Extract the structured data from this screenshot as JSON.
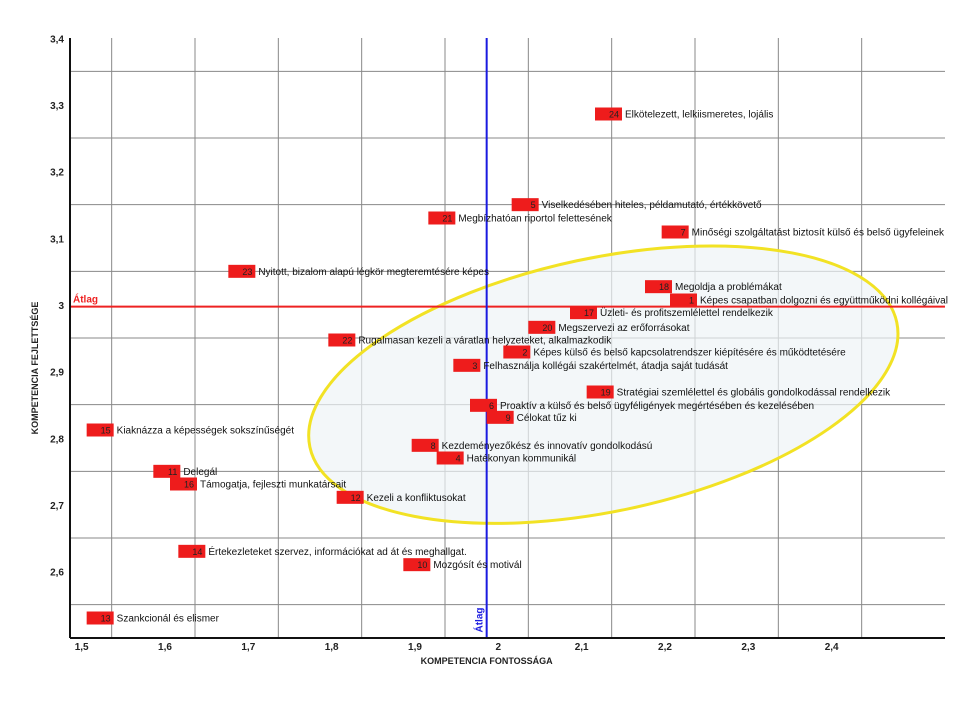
{
  "chart_data": {
    "type": "scatter",
    "xlabel": "KOMPETENCIA FONTOSSÁGA",
    "ylabel": "KOMPETENCIA FEJLETTSÉGE",
    "xlim": [
      1.45,
      2.5
    ],
    "ylim": [
      2.55,
      3.45
    ],
    "x_ticks": [
      1.5,
      1.6,
      1.7,
      1.8,
      1.9,
      2.0,
      2.1,
      2.2,
      2.3,
      2.4
    ],
    "x_tick_labels": [
      "1,5",
      "1,6",
      "1,7",
      "1,8",
      "1,9",
      "2",
      "2,1",
      "2,2",
      "2,3",
      "2,4"
    ],
    "y_ticks": [
      2.6,
      2.7,
      2.8,
      2.9,
      3.0,
      3.1,
      3.2,
      3.3,
      3.4
    ],
    "y_tick_labels": [
      "2,6",
      "2,7",
      "2,8",
      "2,9",
      "3",
      "3,1",
      "3,2",
      "3,3",
      "3,4"
    ],
    "grid": true,
    "avg_x": 1.95,
    "avg_y": 3.047,
    "avg_x_label": "Átlag",
    "avg_y_label": "Átlag",
    "colors": {
      "marker": "#ee1c1c",
      "avg_x_line": "#1a1ae0",
      "avg_y_line": "#ee2222",
      "ellipse": "#f2e224",
      "grid": "#888888"
    },
    "highlight_ellipse": {
      "cx": 2.09,
      "cy": 2.93,
      "rx": 0.36,
      "ry": 0.19,
      "angle_deg": -12
    },
    "points": [
      {
        "id": "24",
        "label": "Elkötelezett, lelkiismeretes, lojális",
        "x": 2.08,
        "y": 3.336
      },
      {
        "id": "5",
        "label": "Viselkedésében hiteles, példamutató, értékkövető",
        "x": 1.98,
        "y": 3.2
      },
      {
        "id": "21",
        "label": "Megbízhatóan riportol felettesének",
        "x": 1.88,
        "y": 3.18
      },
      {
        "id": "7",
        "label": "Minőségi szolgáltatást biztosít külső és belső ügyfeleinek",
        "x": 2.16,
        "y": 3.159
      },
      {
        "id": "23",
        "label": "Nyitott, bizalom alapú légkör megteremtésére képes",
        "x": 1.64,
        "y": 3.1
      },
      {
        "id": "18",
        "label": "Megoldja a problémákat",
        "x": 2.14,
        "y": 3.077
      },
      {
        "id": "1",
        "label": "Képes csapatban dolgozni és együttműködni kollégáival",
        "x": 2.17,
        "y": 3.057
      },
      {
        "id": "17",
        "label": "Üzleti- és profitszemlélettel rendelkezik",
        "x": 2.05,
        "y": 3.038
      },
      {
        "id": "20",
        "label": "Megszervezi az erőforrásokat",
        "x": 2.0,
        "y": 3.016
      },
      {
        "id": "22",
        "label": "Rugalmasan kezeli a váratlan helyzeteket, alkalmazkodik",
        "x": 1.76,
        "y": 2.997
      },
      {
        "id": "2",
        "label": "Képes külső és belső kapcsolatrendszer kiépítésére és működtetésére",
        "x": 1.97,
        "y": 2.979
      },
      {
        "id": "3",
        "label": "Felhasználja kollégái szakértelmét, átadja saját tudását",
        "x": 1.91,
        "y": 2.959
      },
      {
        "id": "19",
        "label": "Stratégiai szemlélettel és globális gondolkodással rendelkezik",
        "x": 2.07,
        "y": 2.919
      },
      {
        "id": "6",
        "label": "Proaktív a külső és belső ügyféligények megértésében és kezelésében",
        "x": 1.93,
        "y": 2.899
      },
      {
        "id": "9",
        "label": "Célokat tűz ki",
        "x": 1.95,
        "y": 2.881
      },
      {
        "id": "15",
        "label": "Kiaknázza a képességek sokszínűségét",
        "x": 1.47,
        "y": 2.862
      },
      {
        "id": "8",
        "label": "Kezdeményezőkész és innovatív gondolkodású",
        "x": 1.86,
        "y": 2.839
      },
      {
        "id": "4",
        "label": "Hatékonyan kommunikál",
        "x": 1.89,
        "y": 2.82
      },
      {
        "id": "11",
        "label": "Delegál",
        "x": 1.55,
        "y": 2.8
      },
      {
        "id": "16",
        "label": "Támogatja, fejleszti munkatársait",
        "x": 1.57,
        "y": 2.781
      },
      {
        "id": "12",
        "label": "Kezeli a konfliktusokat",
        "x": 1.77,
        "y": 2.761
      },
      {
        "id": "14",
        "label": "Értekezleteket szervez, információkat ad át és meghallgat.",
        "x": 1.58,
        "y": 2.68
      },
      {
        "id": "10",
        "label": "Mozgósít és motivál",
        "x": 1.85,
        "y": 2.66
      },
      {
        "id": "13",
        "label": "Szankcionál és elismer",
        "x": 1.47,
        "y": 2.58
      }
    ]
  }
}
